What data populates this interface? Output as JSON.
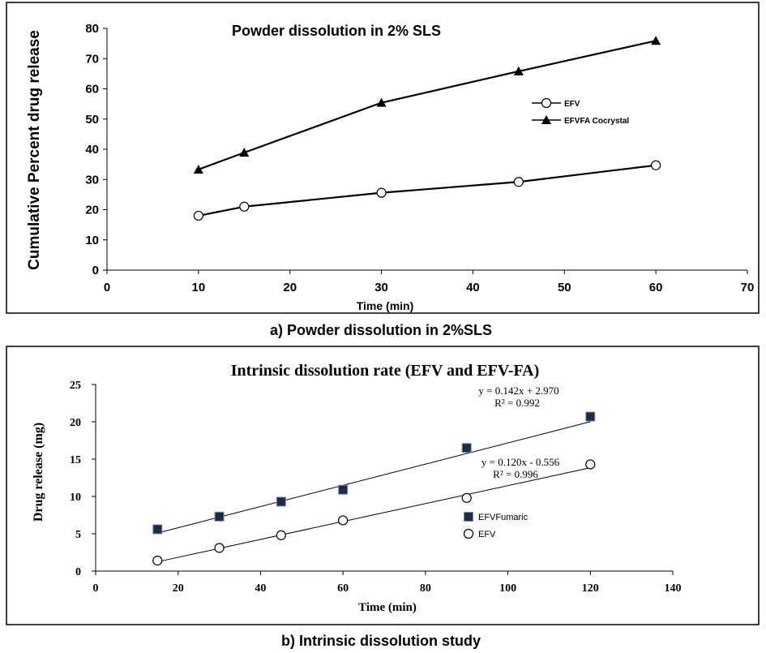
{
  "panel_a_caption": "a) Powder dissolution in 2%SLS",
  "panel_b_caption": "b) Intrinsic dissolution study",
  "colors": {
    "ink": "#000000",
    "background": "#ffffff",
    "marker_fill_b": "#1f2a44"
  },
  "chart_data": [
    {
      "type": "line",
      "title": "Powder dissolution in 2% SLS",
      "xlabel": "Time (min)",
      "ylabel": "Cumulative Percent drug release",
      "xlim": [
        0,
        70
      ],
      "ylim": [
        0,
        80
      ],
      "xticks": [
        0,
        10,
        20,
        30,
        40,
        50,
        60,
        70
      ],
      "yticks": [
        0,
        10,
        20,
        30,
        40,
        50,
        60,
        70,
        80
      ],
      "grid": false,
      "legend_position": "right",
      "series": [
        {
          "name": "EFV",
          "marker": "open-circle",
          "x": [
            10,
            15,
            30,
            45,
            60
          ],
          "y": [
            18,
            21,
            25.6,
            29.2,
            34.7
          ]
        },
        {
          "name": "EFVFA Cocrystal",
          "marker": "filled-triangle",
          "x": [
            10,
            15,
            30,
            45,
            60
          ],
          "y": [
            33.3,
            38.9,
            55.4,
            65.8,
            75.9
          ]
        }
      ]
    },
    {
      "type": "scatter",
      "title": "Intrinsic dissolution rate (EFV and EFV-FA)",
      "xlabel": "Time (min)",
      "ylabel": "Drug release (mg)",
      "xlim": [
        0,
        140
      ],
      "ylim": [
        0,
        25
      ],
      "xticks": [
        0,
        20,
        40,
        60,
        80,
        100,
        120,
        140
      ],
      "yticks": [
        0,
        5,
        10,
        15,
        20,
        25
      ],
      "grid": false,
      "legend_position": "right",
      "series": [
        {
          "name": "EFVFumaric",
          "marker": "filled-square",
          "x": [
            15,
            30,
            45,
            60,
            90,
            120
          ],
          "y": [
            5.6,
            7.3,
            9.3,
            10.9,
            16.5,
            20.7
          ],
          "trendline": {
            "slope": 0.142,
            "intercept": 2.97
          },
          "equation": "y = 0.142x + 2.970",
          "r2": "R² = 0.992"
        },
        {
          "name": "EFV",
          "marker": "open-circle",
          "x": [
            15,
            30,
            45,
            60,
            90,
            120
          ],
          "y": [
            1.4,
            3.1,
            4.8,
            6.8,
            9.8,
            14.3
          ],
          "trendline": {
            "slope": 0.12,
            "intercept": -0.556
          },
          "equation": "y = 0.120x - 0.556",
          "r2": "R² = 0.996"
        }
      ]
    }
  ]
}
